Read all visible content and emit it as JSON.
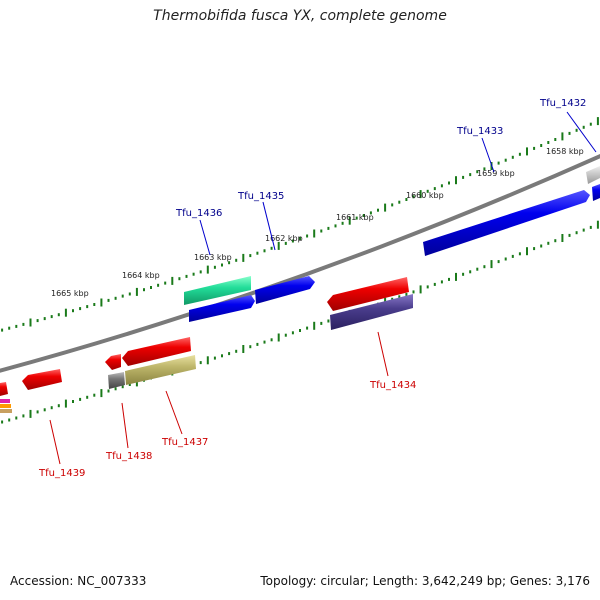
{
  "title": "Thermobifida fusca YX, complete genome",
  "footer": {
    "accession": "Accession: NC_007333",
    "stats": "Topology: circular; Length: 3,642,249 bp; Genes: 3,176"
  },
  "colors": {
    "backbone": "#7a7a7a",
    "tick": "#1a7a1a",
    "forward_label": "#00008b",
    "reverse_label": "#cc0000",
    "cds_forward": "#0000dd",
    "cds_reverse": "#e00000",
    "cds_teal": "#22dd99",
    "cds_purple": "#4a3d8c",
    "cds_olive": "#bdb56a",
    "cds_gray": "#777777"
  },
  "scale": {
    "kbp_labels": [
      "1658 kbp",
      "1659 kbp",
      "1660 kbp",
      "1661 kbp",
      "1662 kbp",
      "1663 kbp",
      "1664 kbp",
      "1665 kbp"
    ]
  },
  "genes": {
    "forward": [
      "Tfu_1432",
      "Tfu_1433",
      "Tfu_1435",
      "Tfu_1436"
    ],
    "reverse": [
      "Tfu_1434",
      "Tfu_1437",
      "Tfu_1438",
      "Tfu_1439"
    ]
  }
}
